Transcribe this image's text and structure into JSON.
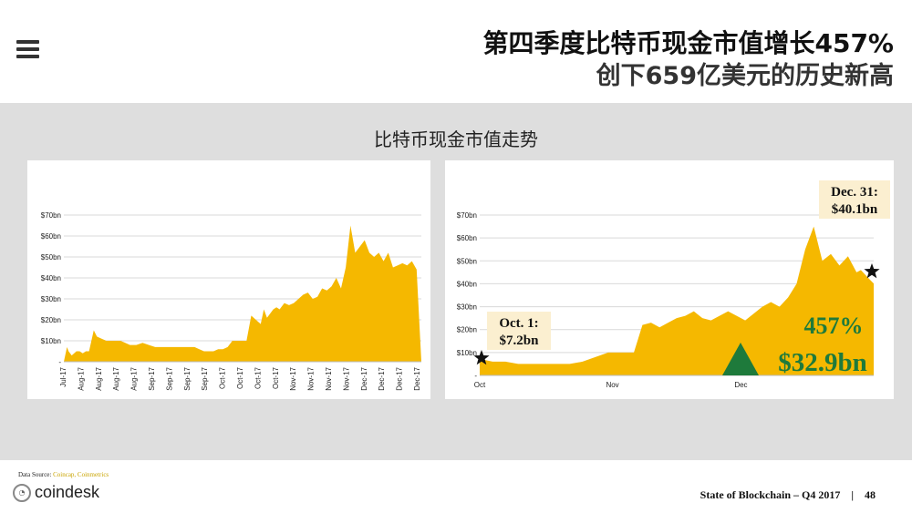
{
  "header": {
    "title_line1": "第四季度比特币现金市值增长457%",
    "title_line2": "创下659亿美元的历史新高"
  },
  "subtitle": "比特币现金市值走势",
  "colors": {
    "area": "#f5b800",
    "grid": "#d9d9d9",
    "triangle": "#1e7a3b"
  },
  "chart_data": [
    {
      "type": "area",
      "title": "",
      "ylim": [
        0,
        70
      ],
      "y_ticks": [
        "-",
        "$10bn",
        "$20bn",
        "$30bn",
        "$40bn",
        "$50bn",
        "$60bn",
        "$70bn"
      ],
      "x_tick_labels": [
        "Jul-17",
        "Aug-17",
        "Aug-17",
        "Aug-17",
        "Aug-17",
        "Sep-17",
        "Sep-17",
        "Sep-17",
        "Sep-17",
        "Oct-17",
        "Oct-17",
        "Oct-17",
        "Oct-17",
        "Nov-17",
        "Nov-17",
        "Nov-17",
        "Nov-17",
        "Dec-17",
        "Dec-17",
        "Dec-17",
        "Dec-17"
      ],
      "x": [
        0,
        2,
        3,
        5,
        8,
        10,
        12,
        14,
        16,
        19,
        21,
        24,
        27,
        30,
        33,
        36,
        39,
        42,
        46,
        50,
        54,
        58,
        62,
        65,
        68,
        71,
        74,
        77,
        80,
        83,
        86,
        89,
        92,
        95,
        98,
        101,
        104,
        107,
        110,
        113,
        116,
        119,
        122,
        125,
        127,
        129,
        131,
        133,
        135,
        137,
        140,
        143,
        146,
        149,
        152,
        155,
        158,
        161,
        164,
        167,
        170,
        173,
        176,
        179,
        182,
        185,
        188,
        191,
        194,
        197,
        200,
        203,
        206,
        209,
        212,
        215,
        218,
        221,
        224,
        227
      ],
      "values": [
        0,
        7,
        5,
        3,
        5,
        5,
        4,
        5,
        5,
        15,
        12,
        11,
        10,
        10,
        10,
        10,
        9,
        8,
        8,
        9,
        8,
        7,
        7,
        7,
        7,
        7,
        7,
        7,
        7,
        7,
        6,
        5,
        5,
        5,
        6,
        6,
        7,
        10,
        10,
        10,
        10,
        22,
        20,
        18,
        25,
        21,
        23,
        25,
        26,
        25,
        28,
        27,
        28,
        30,
        32,
        33,
        30,
        31,
        35,
        34,
        36,
        40,
        35,
        45,
        65,
        52,
        55,
        58,
        52,
        50,
        52,
        48,
        52,
        45,
        46,
        47,
        46,
        48,
        44,
        0
      ],
      "x_unit": "days since Jul 23, 2017 (approx.)",
      "y_unit": "USD billion"
    },
    {
      "type": "area",
      "title": "",
      "ylim": [
        0,
        70
      ],
      "y_ticks": [
        "-",
        "$10bn",
        "$20bn",
        "$30bn",
        "$40bn",
        "$50bn",
        "$60bn",
        "$70bn"
      ],
      "x_tick_labels": [
        "Oct",
        "Nov",
        "Dec"
      ],
      "x": [
        0,
        3,
        6,
        9,
        12,
        15,
        18,
        21,
        24,
        27,
        30,
        33,
        36,
        38,
        40,
        42,
        44,
        46,
        48,
        50,
        52,
        54,
        56,
        58,
        60,
        62,
        64,
        66,
        68,
        70,
        72,
        74,
        76,
        78,
        80,
        82,
        84,
        86,
        88,
        89,
        90,
        91,
        92
      ],
      "values": [
        7.2,
        6,
        6,
        5,
        5,
        5,
        5,
        5,
        6,
        8,
        10,
        10,
        10,
        22,
        23,
        21,
        23,
        25,
        26,
        28,
        25,
        24,
        26,
        28,
        26,
        24,
        27,
        30,
        32,
        30,
        34,
        40,
        55,
        65,
        50,
        53,
        48,
        52,
        45,
        46,
        44,
        42,
        40.1
      ],
      "x_unit": "days since Oct 1, 2017",
      "y_unit": "USD billion",
      "annotations": [
        {
          "line1": "Oct. 1:",
          "line2": "$7.2bn"
        },
        {
          "line1": "Dec. 31:",
          "line2": "$40.1bn"
        },
        {
          "line1": "457%",
          "line2": "$32.9bn"
        }
      ]
    }
  ],
  "footer": {
    "source_label": "Data Source:",
    "source_links": "Coincap, Coinmetrics",
    "logo_text": "coindesk",
    "report": "State of Blockchain – Q4 2017",
    "separator": "|",
    "page": "48"
  }
}
